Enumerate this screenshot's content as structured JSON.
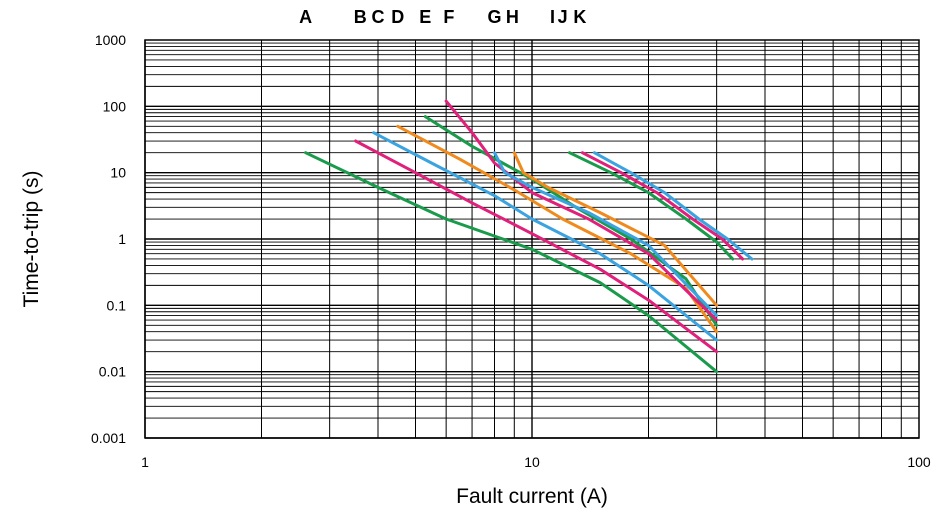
{
  "chart_data": {
    "type": "line",
    "title": "",
    "xlabel": "Fault current (A)",
    "ylabel": "Time-to-trip (s)",
    "x_scale": "log",
    "y_scale": "log",
    "xlim": [
      1,
      100
    ],
    "ylim": [
      0.001,
      1000
    ],
    "x_ticks": [
      1,
      10,
      100
    ],
    "x_tick_labels": [
      "1",
      "10",
      "100"
    ],
    "y_ticks": [
      0.001,
      0.01,
      0.1,
      1,
      10,
      100,
      1000
    ],
    "y_tick_labels": [
      "0.001",
      "0.01",
      "0.1",
      "1",
      "10",
      "100",
      "1000"
    ],
    "grid": true,
    "legend": "none",
    "curve_letters": [
      {
        "text": "A",
        "x": 2.6
      },
      {
        "text": "B",
        "x": 3.6
      },
      {
        "text": "C",
        "x": 4.0
      },
      {
        "text": "D",
        "x": 4.5
      },
      {
        "text": "E",
        "x": 5.3
      },
      {
        "text": "F",
        "x": 6.1
      },
      {
        "text": "G",
        "x": 8.0
      },
      {
        "text": "H",
        "x": 8.9
      },
      {
        "text": "I",
        "x": 11.3
      },
      {
        "text": "J",
        "x": 12.0
      },
      {
        "text": "K",
        "x": 13.3
      }
    ],
    "series": [
      {
        "color": "#1a9b4b",
        "points": [
          [
            2.6,
            20
          ],
          [
            4,
            6
          ],
          [
            6,
            2
          ],
          [
            10,
            0.7
          ],
          [
            15,
            0.22
          ],
          [
            20,
            0.07
          ],
          [
            30,
            0.01
          ]
        ]
      },
      {
        "color": "#e0207a",
        "points": [
          [
            3.5,
            30
          ],
          [
            5,
            10
          ],
          [
            7,
            3.5
          ],
          [
            10,
            1.2
          ],
          [
            15,
            0.35
          ],
          [
            20,
            0.12
          ],
          [
            30,
            0.02
          ]
        ]
      },
      {
        "color": "#3aa3e0",
        "points": [
          [
            3.9,
            40
          ],
          [
            5.5,
            14
          ],
          [
            8,
            4.5
          ],
          [
            10,
            2
          ],
          [
            15,
            0.6
          ],
          [
            20,
            0.2
          ],
          [
            30,
            0.03
          ]
        ]
      },
      {
        "color": "#f08a1c",
        "points": [
          [
            4.5,
            50
          ],
          [
            6.5,
            16
          ],
          [
            9,
            5.5
          ],
          [
            12,
            2
          ],
          [
            18,
            0.6
          ],
          [
            25,
            0.18
          ],
          [
            30,
            0.04
          ]
        ]
      },
      {
        "color": "#1a9b4b",
        "points": [
          [
            5.3,
            70
          ],
          [
            7,
            25
          ],
          [
            10,
            8
          ],
          [
            13,
            3
          ],
          [
            18,
            1
          ],
          [
            25,
            0.25
          ],
          [
            30,
            0.05
          ]
        ]
      },
      {
        "color": "#e0207a",
        "points": [
          [
            6,
            120
          ],
          [
            7,
            40
          ],
          [
            8,
            14
          ],
          [
            10,
            5
          ],
          [
            14,
            2
          ],
          [
            20,
            0.6
          ],
          [
            30,
            0.06
          ]
        ]
      },
      {
        "color": "#3aa3e0",
        "points": [
          [
            8,
            20
          ],
          [
            8.5,
            10
          ],
          [
            10,
            6
          ],
          [
            14,
            2.5
          ],
          [
            20,
            0.8
          ],
          [
            30,
            0.07
          ]
        ]
      },
      {
        "color": "#f08a1c",
        "points": [
          [
            9,
            20
          ],
          [
            9.5,
            10
          ],
          [
            11,
            6
          ],
          [
            15,
            2.5
          ],
          [
            22,
            0.8
          ],
          [
            30,
            0.1
          ]
        ]
      },
      {
        "color": "#1a9b4b",
        "points": [
          [
            12.5,
            20
          ],
          [
            16,
            10
          ],
          [
            20,
            5
          ],
          [
            25,
            2
          ],
          [
            30,
            0.9
          ],
          [
            33,
            0.5
          ]
        ]
      },
      {
        "color": "#e0207a",
        "points": [
          [
            13.5,
            20
          ],
          [
            17,
            10
          ],
          [
            21,
            5
          ],
          [
            26,
            2
          ],
          [
            31,
            1
          ],
          [
            35,
            0.5
          ]
        ]
      },
      {
        "color": "#3aa3e0",
        "points": [
          [
            14.5,
            20
          ],
          [
            18,
            10
          ],
          [
            22,
            5
          ],
          [
            27,
            2
          ],
          [
            32,
            1
          ],
          [
            37,
            0.5
          ]
        ]
      }
    ]
  }
}
